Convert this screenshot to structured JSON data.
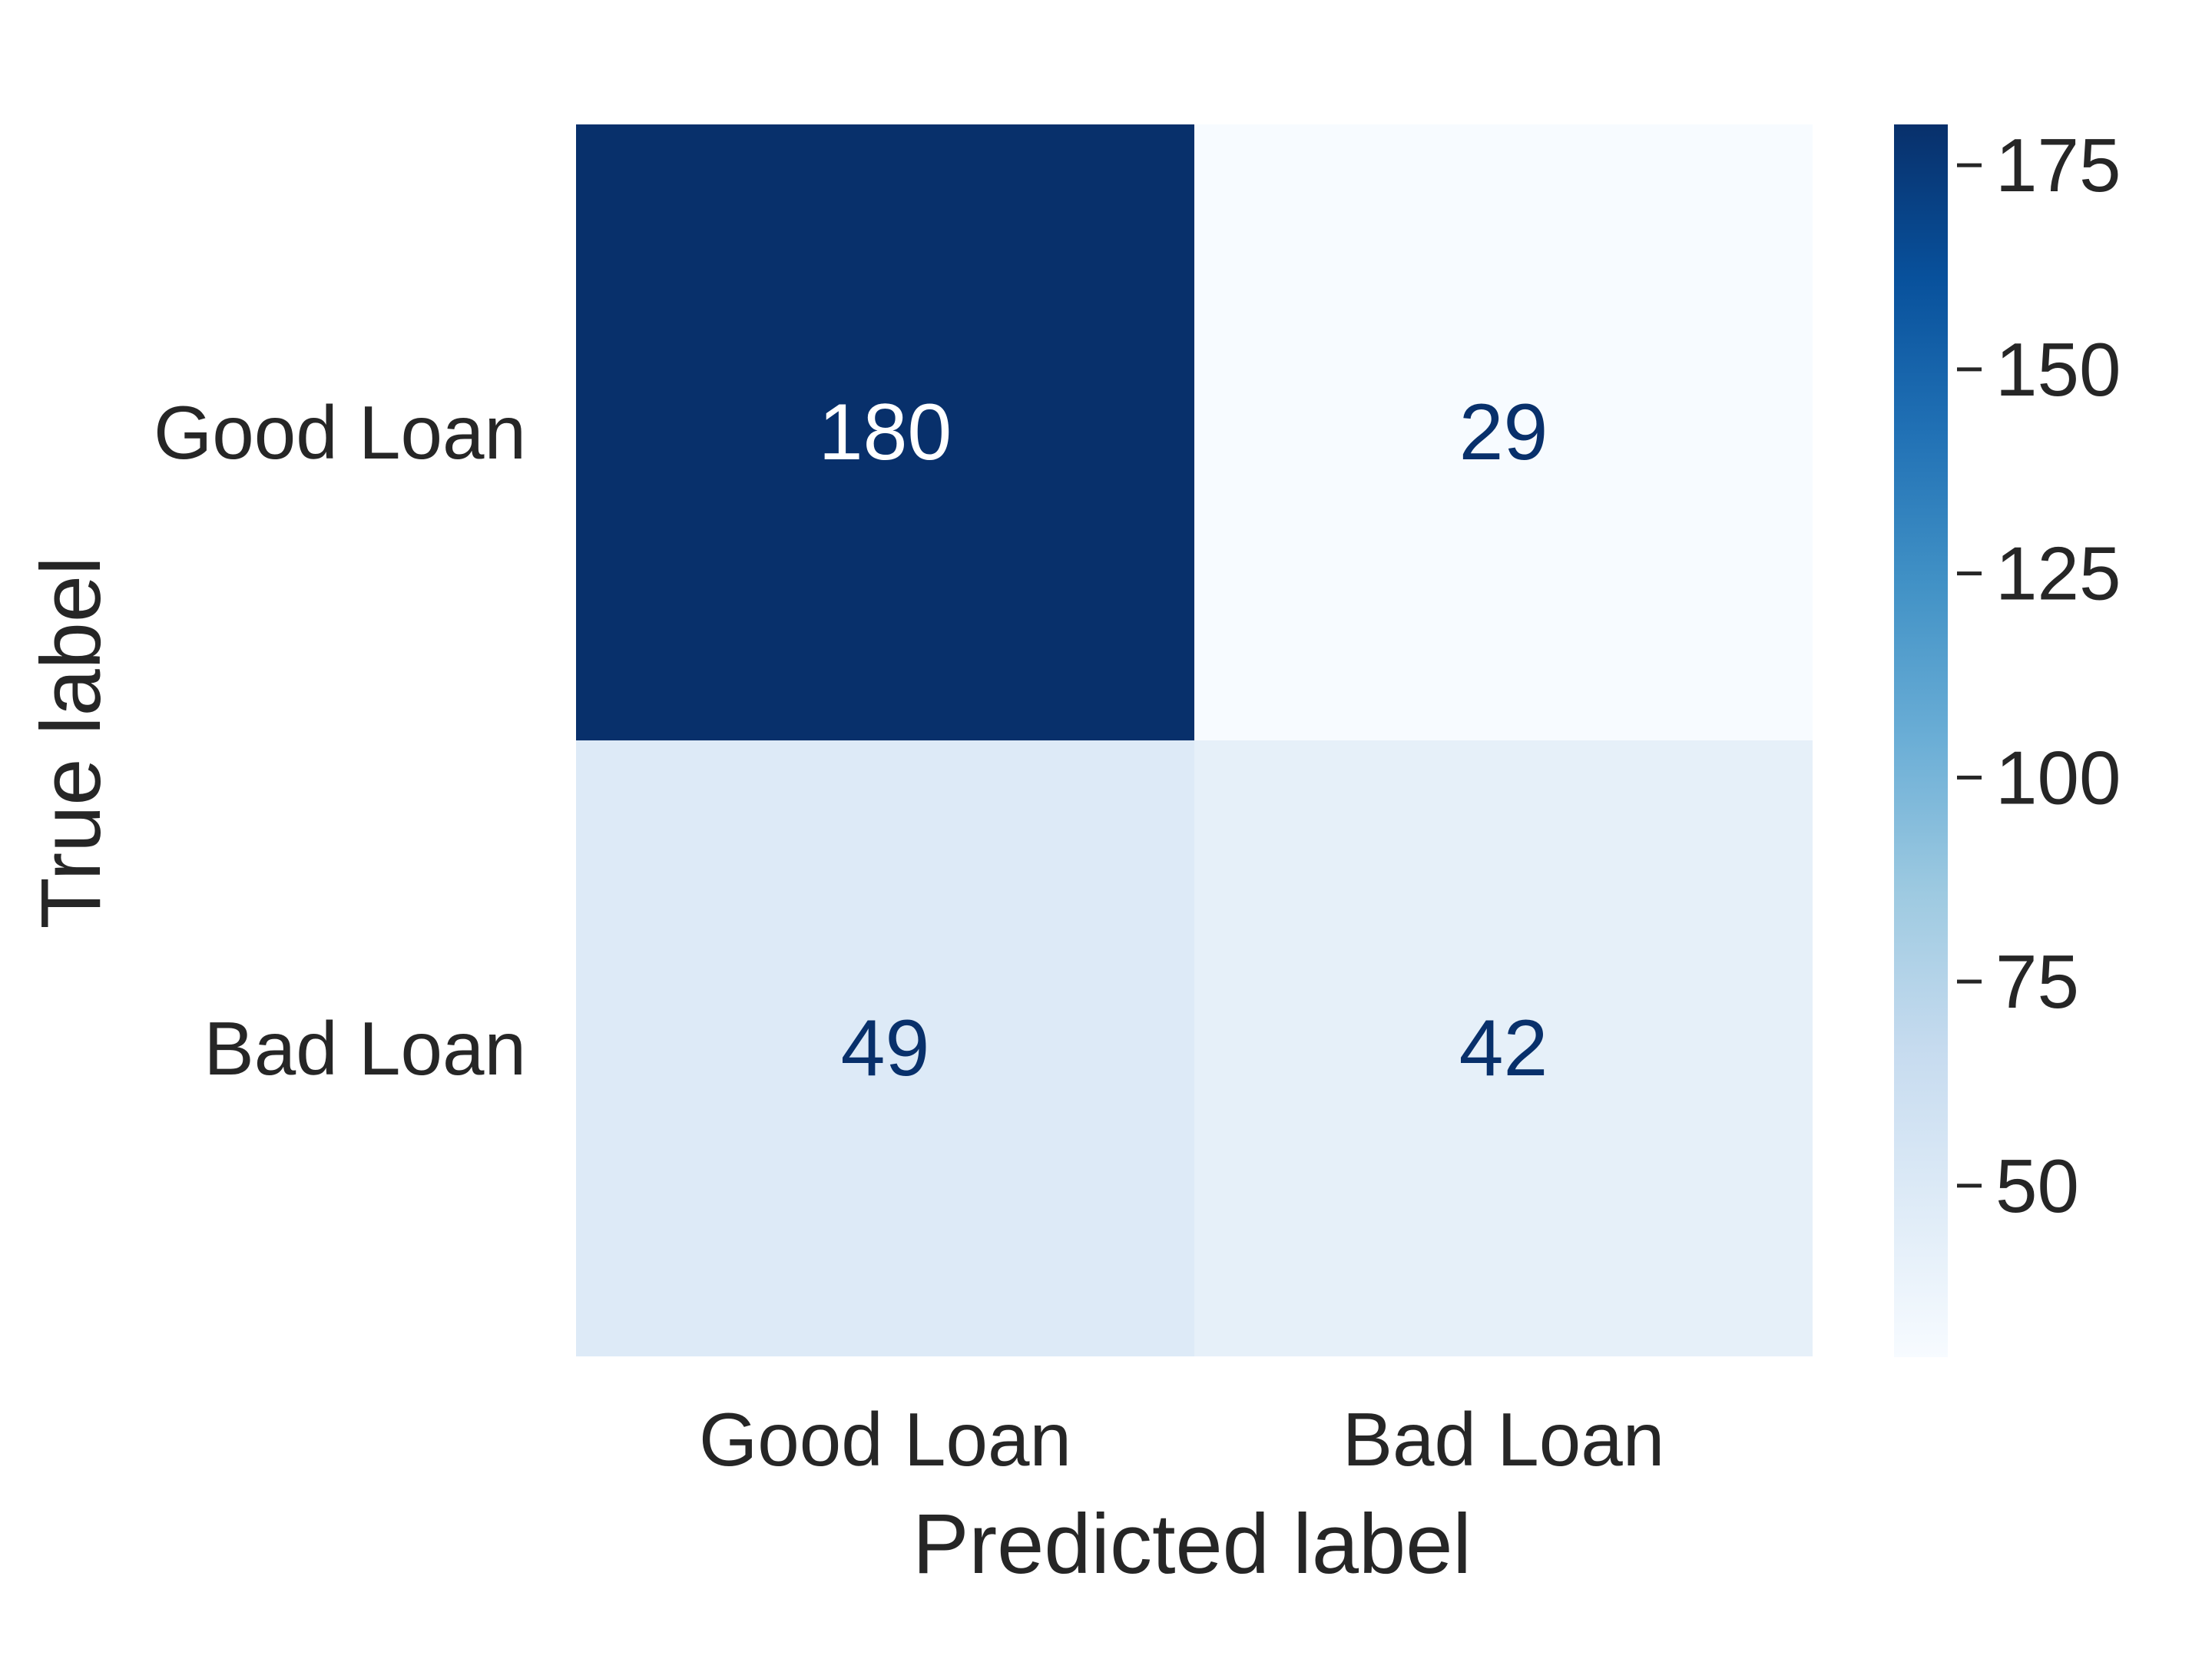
{
  "chart_data": {
    "type": "heatmap",
    "xlabel": "Predicted label",
    "ylabel": "True label",
    "x_categories": [
      "Good Loan",
      "Bad Loan"
    ],
    "y_categories": [
      "Good Loan",
      "Bad Loan"
    ],
    "values": [
      [
        180,
        29
      ],
      [
        49,
        42
      ]
    ],
    "colormap": "Blues",
    "colorbar": {
      "range": [
        29,
        180
      ],
      "ticks": [
        50,
        75,
        100,
        125,
        150,
        175
      ]
    },
    "text_colors": {
      "dark_cell": "#ffffff",
      "light_cell": "#08306b"
    }
  }
}
